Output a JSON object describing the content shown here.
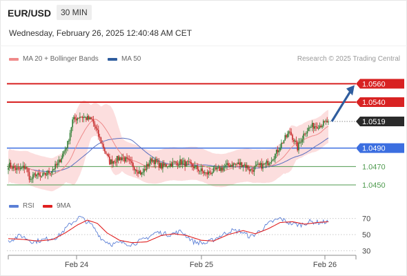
{
  "header": {
    "symbol": "EUR/USD",
    "timeframe": "30 MIN",
    "datetime": "Wednesday, February 26, 2025 12:40:48 AM CET",
    "credit": "Research © 2025 Trading Central"
  },
  "legend": [
    {
      "label": "MA 20 + Bollinger Bands",
      "color": "#f08a8a"
    },
    {
      "label": "MA 50",
      "color": "#2f5d9e"
    }
  ],
  "rsi_legend": [
    {
      "label": "RSI",
      "color": "#5b7fd6"
    },
    {
      "label": "9MA",
      "color": "#e02020"
    }
  ],
  "colors": {
    "resistance": "#d82222",
    "pivot": "#3b6ee0",
    "support": "#4e9a4e",
    "current": "#2a2a2a",
    "arrow": "#2f5d9e",
    "candle_up": "#2e7d32",
    "candle_down": "#c62828",
    "band": "#fbd3d3",
    "ma20": "#ee8a8a",
    "ma50": "#5a6fc0"
  },
  "chart_data": [
    {
      "type": "candlestick",
      "title": "EUR/USD 30 MIN",
      "ylim": [
        1.0435,
        1.0585
      ],
      "x_ticks": [
        "Feb 24",
        "Feb 25",
        "Feb 26"
      ],
      "current_price": "1.0519",
      "levels": [
        {
          "value": "1.0560",
          "kind": "resistance"
        },
        {
          "value": "1.0540",
          "kind": "resistance"
        },
        {
          "value": "1.0490",
          "kind": "pivot"
        },
        {
          "value": "1.0470",
          "kind": "support"
        },
        {
          "value": "1.0450",
          "kind": "support"
        }
      ],
      "close_anchors": [
        [
          0,
          1.0472
        ],
        [
          8,
          1.0466
        ],
        [
          14,
          1.047
        ],
        [
          18,
          1.0455
        ],
        [
          22,
          1.0462
        ],
        [
          26,
          1.0458
        ],
        [
          32,
          1.0463
        ],
        [
          40,
          1.0472
        ],
        [
          48,
          1.0495
        ],
        [
          52,
          1.052
        ],
        [
          58,
          1.0525
        ],
        [
          68,
          1.052
        ],
        [
          74,
          1.05
        ],
        [
          82,
          1.0475
        ],
        [
          92,
          1.048
        ],
        [
          100,
          1.0472
        ],
        [
          108,
          1.0462
        ],
        [
          116,
          1.0478
        ],
        [
          124,
          1.047
        ],
        [
          132,
          1.0473
        ],
        [
          140,
          1.0475
        ],
        [
          150,
          1.047
        ],
        [
          160,
          1.0462
        ],
        [
          170,
          1.0467
        ],
        [
          180,
          1.0472
        ],
        [
          190,
          1.0473
        ],
        [
          196,
          1.0466
        ],
        [
          202,
          1.047
        ],
        [
          208,
          1.0472
        ],
        [
          216,
          1.0483
        ],
        [
          222,
          1.0497
        ],
        [
          228,
          1.0508
        ],
        [
          234,
          1.049
        ],
        [
          240,
          1.0508
        ],
        [
          246,
          1.0514
        ],
        [
          252,
          1.0515
        ],
        [
          259,
          1.0519
        ]
      ]
    },
    {
      "type": "line",
      "title": "RSI",
      "ylim": [
        20,
        80
      ],
      "y_ticks": [
        "70",
        "50",
        "30"
      ],
      "series": [
        {
          "name": "RSI",
          "anchors": [
            [
              0,
              42
            ],
            [
              10,
              49
            ],
            [
              20,
              41
            ],
            [
              30,
              44
            ],
            [
              40,
              47
            ],
            [
              50,
              63
            ],
            [
              58,
              72
            ],
            [
              68,
              61
            ],
            [
              76,
              44
            ],
            [
              84,
              38
            ],
            [
              92,
              40
            ],
            [
              100,
              38
            ],
            [
              110,
              44
            ],
            [
              120,
              53
            ],
            [
              130,
              50
            ],
            [
              140,
              54
            ],
            [
              150,
              41
            ],
            [
              160,
              39
            ],
            [
              170,
              47
            ],
            [
              180,
              55
            ],
            [
              188,
              54
            ],
            [
              196,
              47
            ],
            [
              204,
              55
            ],
            [
              212,
              65
            ],
            [
              220,
              70
            ],
            [
              228,
              64
            ],
            [
              236,
              62
            ],
            [
              244,
              66
            ],
            [
              252,
              65
            ],
            [
              259,
              66
            ]
          ]
        },
        {
          "name": "9MA",
          "anchors": [
            [
              0,
              45
            ],
            [
              12,
              44
            ],
            [
              24,
              42
            ],
            [
              36,
              44
            ],
            [
              46,
              52
            ],
            [
              56,
              62
            ],
            [
              64,
              68
            ],
            [
              72,
              64
            ],
            [
              80,
              52
            ],
            [
              90,
              43
            ],
            [
              100,
              40
            ],
            [
              112,
              41
            ],
            [
              124,
              49
            ],
            [
              134,
              51
            ],
            [
              144,
              49
            ],
            [
              156,
              43
            ],
            [
              166,
              42
            ],
            [
              178,
              50
            ],
            [
              190,
              55
            ],
            [
              200,
              51
            ],
            [
              210,
              57
            ],
            [
              220,
              65
            ],
            [
              230,
              66
            ],
            [
              240,
              63
            ],
            [
              250,
              65
            ],
            [
              259,
              66
            ]
          ]
        }
      ]
    }
  ]
}
